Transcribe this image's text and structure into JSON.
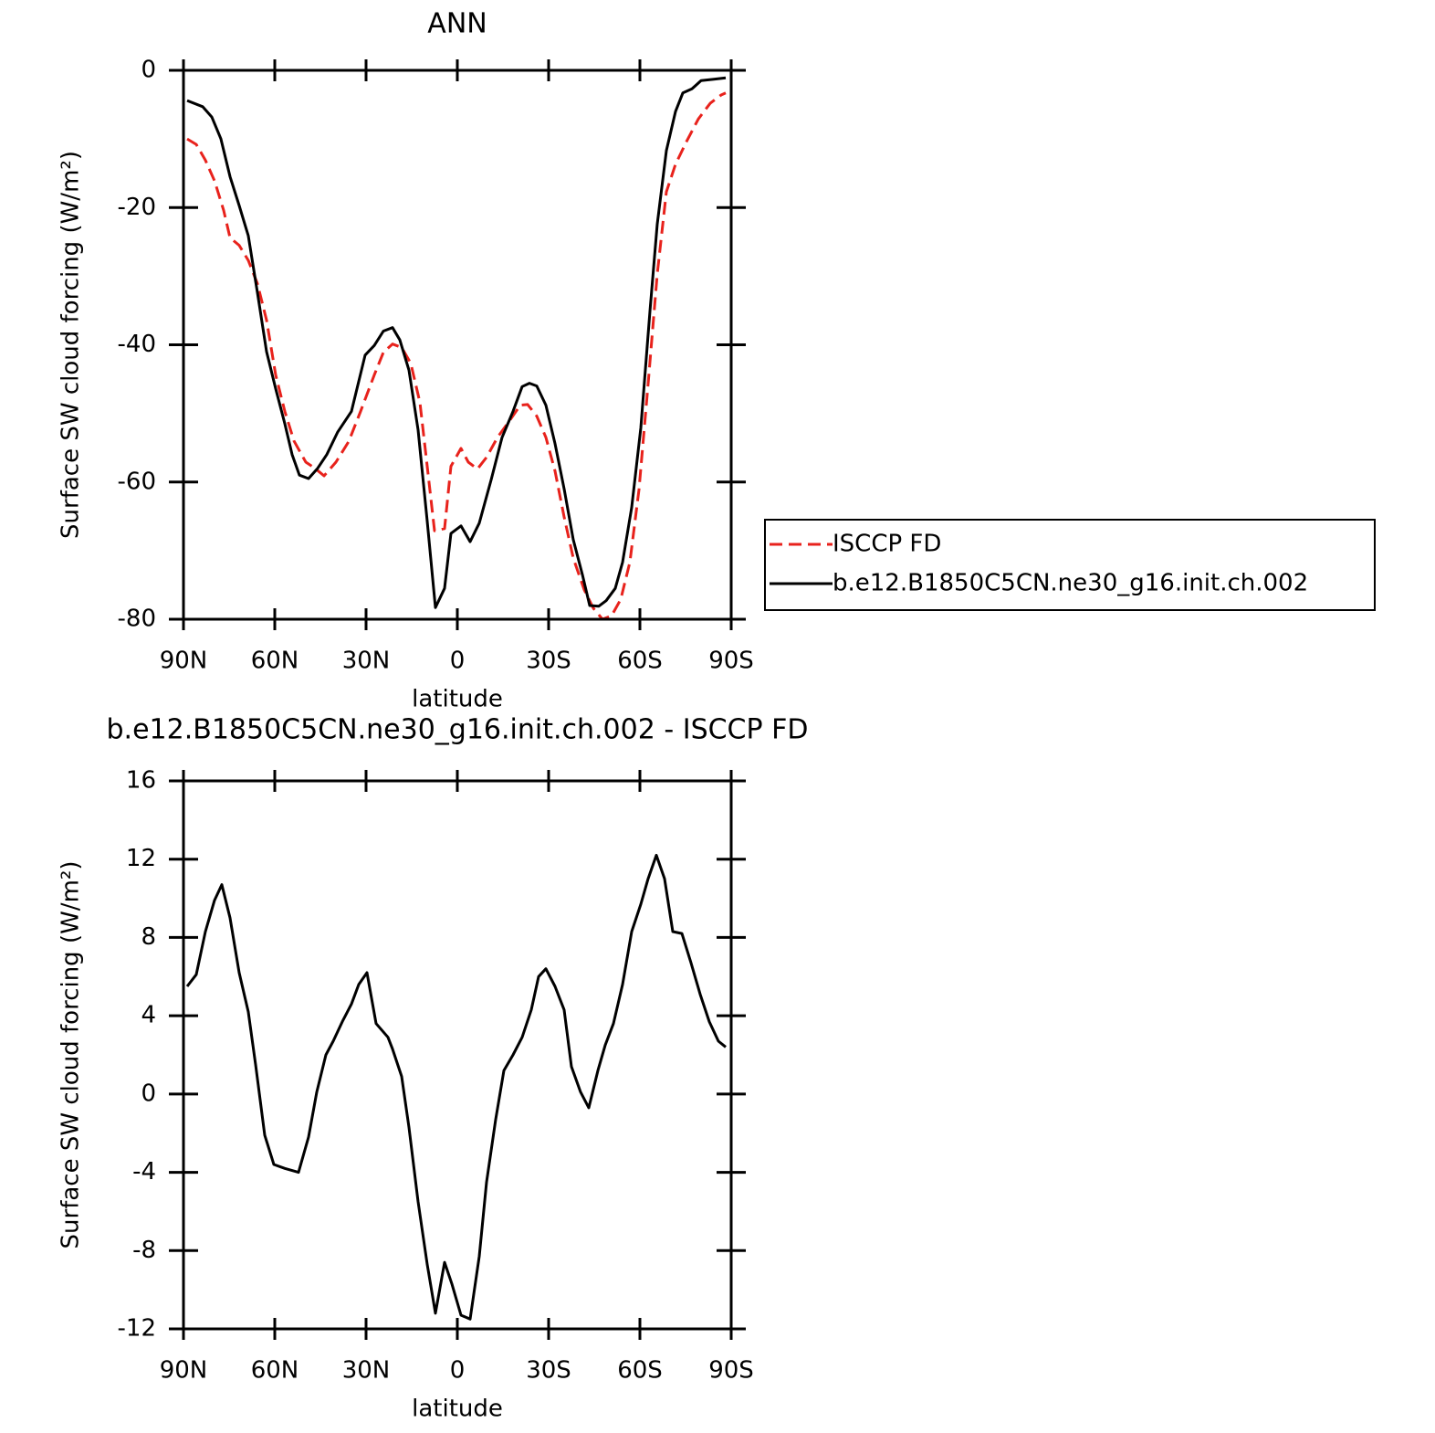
{
  "chart_data": [
    {
      "type": "line",
      "title": "ANN",
      "xlabel": "latitude",
      "ylabel": "Surface SW cloud forcing (W/m²)",
      "xlim": [
        90,
        -90
      ],
      "xticks": [
        {
          "value": 90,
          "label": "90N"
        },
        {
          "value": 60,
          "label": "60N"
        },
        {
          "value": 30,
          "label": "30N"
        },
        0,
        {
          "value": -30,
          "label": "30S"
        },
        {
          "value": -60,
          "label": "60S"
        },
        {
          "value": -90,
          "label": "90S"
        }
      ],
      "ylim": [
        -80,
        0
      ],
      "yticks": [
        -80,
        -60,
        -40,
        -20,
        0
      ],
      "legend": "right",
      "series": [
        {
          "name": "ISCCP FD",
          "color": "#e8221c",
          "dash": true,
          "x": [
            88.8,
            85.8,
            82.8,
            79.8,
            76.8,
            74.7,
            71.7,
            68.7,
            65.7,
            62.7,
            59.7,
            56.7,
            53.7,
            49.8,
            46.8,
            43.8,
            39.9,
            35.7,
            31.8,
            27.3,
            24.3,
            21.3,
            18.3,
            15.3,
            12.3,
            9.9,
            7.5,
            4.2,
            2.1,
            -1.2,
            -3.6,
            -6.6,
            -9.6,
            -13.2,
            -17.1,
            -20.7,
            -23.1,
            -26.1,
            -29.1,
            -32.1,
            -35.1,
            -38.1,
            -41.7,
            -44.7,
            -47.7,
            -50.7,
            -53.7,
            -56.7,
            -59.7,
            -62.7,
            -65.7,
            -68.7,
            -71.7,
            -75.3,
            -79.2,
            -83.1,
            -86.7,
            -88.2
          ],
          "values": [
            -10,
            -10.8,
            -13.1,
            -16.1,
            -20.4,
            -24.4,
            -25.5,
            -27.7,
            -31.1,
            -36.4,
            -44.4,
            -49.7,
            -54,
            -57.1,
            -58,
            -59.1,
            -57.1,
            -54.1,
            -49.7,
            -44.4,
            -41.1,
            -39.9,
            -40.4,
            -42.7,
            -48.4,
            -57.7,
            -67.1,
            -66.8,
            -57.7,
            -55.1,
            -57.1,
            -58.1,
            -56.4,
            -53.5,
            -51.1,
            -48.8,
            -48.7,
            -50.4,
            -53.5,
            -58.4,
            -65.1,
            -71.1,
            -75.7,
            -78.4,
            -80,
            -79.5,
            -77.1,
            -71.7,
            -61.1,
            -45.7,
            -29.7,
            -17.7,
            -13.7,
            -10.4,
            -7.1,
            -4.8,
            -3.6,
            -3.3
          ]
        },
        {
          "name": "b.e12.B1850C5CN.ne30_g16.init.ch.002",
          "color": "#000000",
          "dash": false,
          "x": [
            88.8,
            83.7,
            80.7,
            77.7,
            74.7,
            71.7,
            68.7,
            65.7,
            62.7,
            59.7,
            56.7,
            54.3,
            51.9,
            48.9,
            45.9,
            42.9,
            39.3,
            34.8,
            30.3,
            27.3,
            24.3,
            21.3,
            18.9,
            15.9,
            12.9,
            9.9,
            7.2,
            4.2,
            2.1,
            -1.2,
            -4.2,
            -7.2,
            -11.1,
            -14.7,
            -18.3,
            -21.3,
            -23.7,
            -26.1,
            -29.1,
            -32.1,
            -35.1,
            -38.1,
            -41.1,
            -43.5,
            -46.5,
            -48.9,
            -51.9,
            -54.3,
            -57.3,
            -60.3,
            -63.3,
            -65.7,
            -68.7,
            -71.7,
            -74.1,
            -77.1,
            -80.1,
            -84.3,
            -88.2
          ],
          "values": [
            -4.4,
            -5.3,
            -6.8,
            -10,
            -15.5,
            -19.7,
            -24.1,
            -32.4,
            -41,
            -46.4,
            -51.5,
            -56,
            -59,
            -59.5,
            -58,
            -56,
            -52.7,
            -49.7,
            -41.5,
            -40.1,
            -38,
            -37.5,
            -39.3,
            -43.7,
            -52.4,
            -65.7,
            -78.3,
            -75.5,
            -67.5,
            -66.4,
            -68.7,
            -66,
            -59.7,
            -53.5,
            -49.7,
            -46.1,
            -45.6,
            -46,
            -48.8,
            -54.4,
            -61,
            -68.4,
            -73.5,
            -78,
            -78.1,
            -77.3,
            -75.5,
            -71.7,
            -63.7,
            -52.1,
            -35.1,
            -22.4,
            -11.7,
            -6,
            -3.3,
            -2.7,
            -1.5,
            -1.3,
            -1.1
          ]
        }
      ]
    },
    {
      "type": "line",
      "title": "b.e12.B1850C5CN.ne30_g16.init.ch.002 - ISCCP FD",
      "xlabel": "latitude",
      "ylabel": "Surface SW cloud forcing (W/m²)",
      "xlim": [
        90,
        -90
      ],
      "xticks": [
        {
          "value": 90,
          "label": "90N"
        },
        {
          "value": 60,
          "label": "60N"
        },
        {
          "value": 30,
          "label": "30N"
        },
        0,
        {
          "value": -30,
          "label": "30S"
        },
        {
          "value": -60,
          "label": "60S"
        },
        {
          "value": -90,
          "label": "90S"
        }
      ],
      "ylim": [
        -12,
        16
      ],
      "yticks": [
        -12,
        -8,
        -4,
        0,
        4,
        8,
        12,
        16
      ],
      "series": [
        {
          "color": "#000000",
          "dash": false,
          "x": [
            88.8,
            85.8,
            82.8,
            79.8,
            77.4,
            74.7,
            71.7,
            68.7,
            66.3,
            63.3,
            60.3,
            56.7,
            52.2,
            48.9,
            46.2,
            43.2,
            40.8,
            37.8,
            34.8,
            32.4,
            29.7,
            26.7,
            22.8,
            21.3,
            18.3,
            15.9,
            12.9,
            9.9,
            7.2,
            4.2,
            1.8,
            -1.2,
            -4.2,
            -7.2,
            -9.6,
            -12.6,
            -15.3,
            -18.3,
            -21.3,
            -24.3,
            -26.7,
            -29.1,
            -32.1,
            -35.1,
            -37.5,
            -40.5,
            -43.2,
            -46.2,
            -48.6,
            -51.3,
            -54.3,
            -57.3,
            -60.3,
            -62.7,
            -65.4,
            -68.1,
            -70.8,
            -73.8,
            -76.8,
            -79.8,
            -82.8,
            -85.8,
            -88.2
          ],
          "values": [
            5.5,
            6.1,
            8.3,
            9.9,
            10.7,
            9,
            6.2,
            4.2,
            1.5,
            -2.1,
            -3.6,
            -3.8,
            -4,
            -2.2,
            0.1,
            2,
            2.7,
            3.7,
            4.6,
            5.6,
            6.2,
            3.6,
            2.9,
            2.3,
            0.9,
            -1.7,
            -5.5,
            -8.7,
            -11.2,
            -8.6,
            -9.7,
            -11.3,
            -11.5,
            -8.3,
            -4.5,
            -1.3,
            1.2,
            2,
            2.9,
            4.3,
            6,
            6.4,
            5.5,
            4.3,
            1.4,
            0.1,
            -0.7,
            1.2,
            2.5,
            3.6,
            5.6,
            8.3,
            9.7,
            11,
            12.2,
            11,
            8.3,
            8.2,
            6.7,
            5.1,
            3.7,
            2.7,
            2.4
          ]
        }
      ]
    }
  ]
}
